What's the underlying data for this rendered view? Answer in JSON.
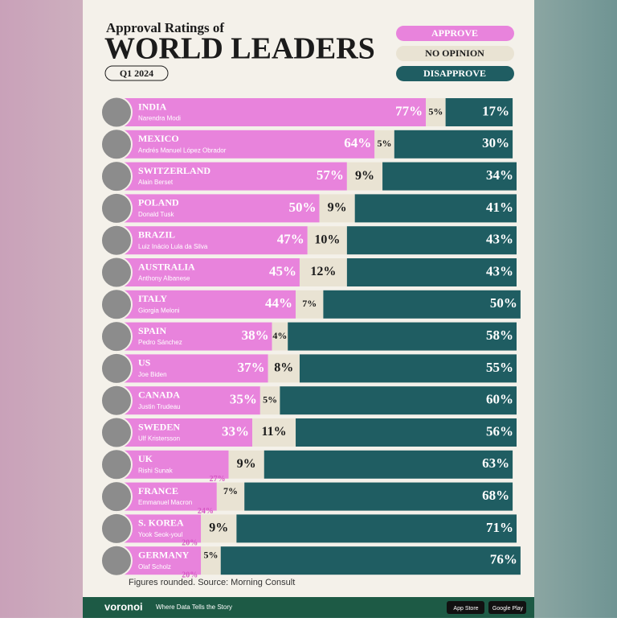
{
  "chart_data": {
    "type": "stacked-bar",
    "kicker": "Approval Ratings of",
    "title": "WORLD LEADERS",
    "subtitle": "Q1 2024",
    "categories": [
      "INDIA",
      "MEXICO",
      "SWITZERLAND",
      "POLAND",
      "BRAZIL",
      "AUSTRALIA",
      "ITALY",
      "SPAIN",
      "US",
      "CANADA",
      "SWEDEN",
      "UK",
      "FRANCE",
      "S. KOREA",
      "GERMANY"
    ],
    "leaders": [
      "Narendra Modi",
      "Andrés Manuel López Obrador",
      "Alain Berset",
      "Donald Tusk",
      "Luiz Inácio Lula da Silva",
      "Anthony Albanese",
      "Giorgia Meloni",
      "Pedro Sánchez",
      "Joe Biden",
      "Justin Trudeau",
      "Ulf Kristersson",
      "Rishi Sunak",
      "Emmanuel Macron",
      "Yook Seok-youl",
      "Olaf Scholz"
    ],
    "xlim": [
      0,
      100
    ],
    "series": [
      {
        "name": "APPROVE",
        "color": "#e883dc",
        "values": [
          77,
          64,
          57,
          50,
          47,
          45,
          44,
          38,
          37,
          35,
          33,
          27,
          24,
          20,
          20
        ],
        "value_labels": [
          "77%",
          "64%",
          "57%",
          "50%",
          "47%",
          "45%",
          "44%",
          "38%",
          "37%",
          "35%",
          "33%",
          "27%",
          "24%",
          "20%",
          "20%"
        ]
      },
      {
        "name": "NO OPINION",
        "color": "#e9e3d3",
        "values": [
          5,
          5,
          9,
          9,
          10,
          12,
          7,
          4,
          8,
          5,
          11,
          9,
          7,
          9,
          5
        ],
        "value_labels": [
          "5%",
          "5%",
          "9%",
          "9%",
          "10%",
          "12%",
          "7%",
          "4%",
          "8%",
          "5%",
          "11%",
          "9%",
          "7%",
          "9%",
          "5%"
        ]
      },
      {
        "name": "DISAPPROVE",
        "color": "#1f5d62",
        "values": [
          17,
          30,
          34,
          41,
          43,
          43,
          50,
          58,
          55,
          60,
          56,
          63,
          68,
          71,
          76
        ],
        "value_labels": [
          "17%",
          "30%",
          "34%",
          "41%",
          "43%",
          "43%",
          "50%",
          "58%",
          "55%",
          "60%",
          "56%",
          "63%",
          "68%",
          "71%",
          "76%"
        ]
      }
    ],
    "source": "Figures rounded. Source: Morning Consult"
  },
  "footer": {
    "brand": "voronoi",
    "tagline": "Where Data Tells the Story",
    "store1": "App Store",
    "store2": "Google Play"
  }
}
